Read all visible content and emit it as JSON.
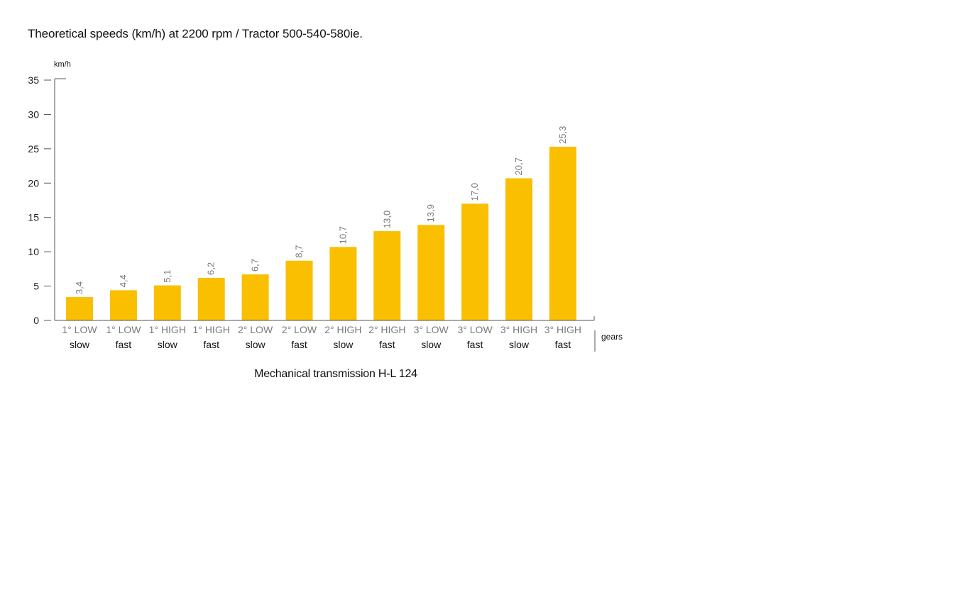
{
  "title": "Theoretical speeds (km/h) at 2200 rpm / Tractor 500-540-580ie.",
  "caption": "Mechanical transmission H-L 124",
  "chart_data": {
    "type": "bar",
    "title": "Theoretical speeds (km/h) at 2200 rpm / Tractor 500-540-580ie.",
    "xlabel": "gears",
    "ylabel": "km/h",
    "ylim": [
      0,
      35
    ],
    "yticks": [
      0,
      5,
      10,
      15,
      20,
      25,
      30,
      35
    ],
    "categories": [
      [
        "1° LOW",
        "slow"
      ],
      [
        "1° LOW",
        "fast"
      ],
      [
        "1° HIGH",
        "slow"
      ],
      [
        "1° HIGH",
        "fast"
      ],
      [
        "2° LOW",
        "slow"
      ],
      [
        "2° LOW",
        "fast"
      ],
      [
        "2° HIGH",
        "slow"
      ],
      [
        "2° HIGH",
        "fast"
      ],
      [
        "3° LOW",
        "slow"
      ],
      [
        "3° LOW",
        "fast"
      ],
      [
        "3° HIGH",
        "slow"
      ],
      [
        "3° HIGH",
        "fast"
      ]
    ],
    "values": [
      3.4,
      4.4,
      5.1,
      6.2,
      6.7,
      8.7,
      10.7,
      13.0,
      13.9,
      17.0,
      20.7,
      25.3
    ],
    "value_labels": [
      "3,4",
      "4,4",
      "5,1",
      "6,2",
      "6,7",
      "8,7",
      "10,7",
      "13,0",
      "13,9",
      "17,0",
      "20,7",
      "25,3"
    ],
    "bar_color": "#f9bf00",
    "grid": false,
    "legend": "none"
  },
  "colors": {
    "bar": "#f9bf00",
    "axis": "#555555",
    "secondary_text": "#7a7a7a"
  }
}
